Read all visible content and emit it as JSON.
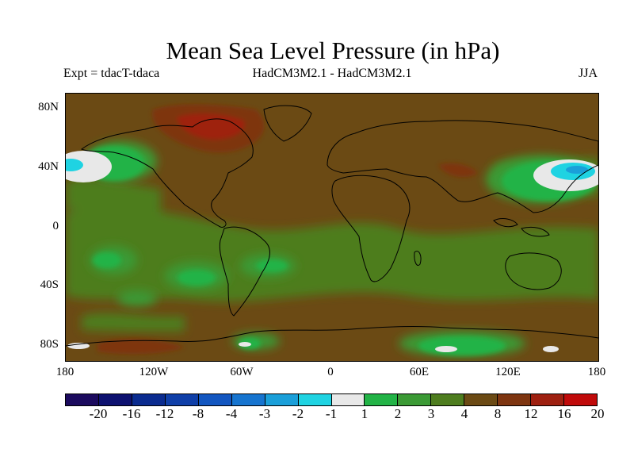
{
  "title": "Mean Sea Level Pressure (in hPa)",
  "subtitle_left": "Expt = tdacT-tdaca",
  "subtitle_center": "HadCM3M2.1 - HadCM3M2.1",
  "subtitle_right": "JJA",
  "lat_ticks": [
    "80N",
    "40N",
    "0",
    "40S",
    "80S"
  ],
  "lon_ticks": [
    "180",
    "120W",
    "60W",
    "0",
    "60E",
    "120E",
    "180"
  ],
  "colorbar": {
    "labels": [
      "-20",
      "-16",
      "-12",
      "-8",
      "-4",
      "-3",
      "-2",
      "-1",
      "1",
      "2",
      "3",
      "4",
      "8",
      "12",
      "16",
      "20"
    ],
    "colors": [
      "#1b0a5e",
      "#0d1170",
      "#0a2b8f",
      "#0f3fa8",
      "#1256c0",
      "#1674cf",
      "#1a9fd9",
      "#1fd3e2",
      "#e8e8e8",
      "#22b346",
      "#3b9a35",
      "#4e7d1f",
      "#6b4a14",
      "#7e3510",
      "#9e2010",
      "#c00a0a"
    ]
  },
  "colors": {
    "land_outline": "#000000",
    "background_field": "#6b4a14"
  }
}
